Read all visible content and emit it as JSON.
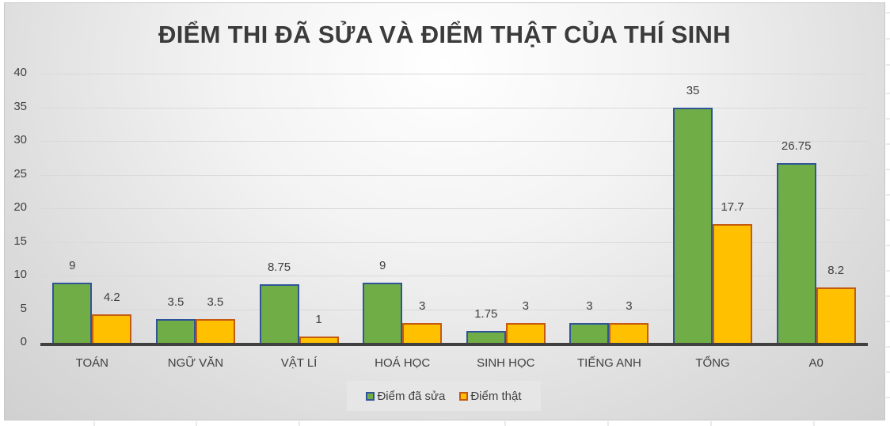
{
  "chart_data": {
    "type": "bar",
    "title": "ĐIỂM THI ĐÃ SỬA VÀ ĐIỂM THẬT CỦA THÍ SINH",
    "categories": [
      "TOÁN",
      "NGỮ VĂN",
      "VẬT LÍ",
      "HOÁ HỌC",
      "SINH HỌC",
      "TIẾNG ANH",
      "TỔNG",
      "A0"
    ],
    "series": [
      {
        "name": "Điểm đã sửa",
        "color": "#70ad47",
        "border": "#2f5597",
        "values": [
          9,
          3.5,
          8.75,
          9,
          1.75,
          3,
          35,
          26.75
        ],
        "labels": [
          "9",
          "3.5",
          "8.75",
          "9",
          "1.75",
          "3",
          "35",
          "26.75"
        ]
      },
      {
        "name": "Điểm thật",
        "color": "#ffc000",
        "border": "#c55a11",
        "values": [
          4.2,
          3.5,
          1,
          3,
          3,
          3,
          17.7,
          8.2
        ],
        "labels": [
          "4.2",
          "3.5",
          "1",
          "3",
          "3",
          "3",
          "17.7",
          "8.2"
        ]
      }
    ],
    "xlabel": "",
    "ylabel": "",
    "ylim": [
      0,
      40
    ],
    "yticks": [
      "0",
      "5",
      "10",
      "15",
      "20",
      "25",
      "30",
      "35",
      "40"
    ],
    "grid": true,
    "legend_position": "bottom"
  }
}
